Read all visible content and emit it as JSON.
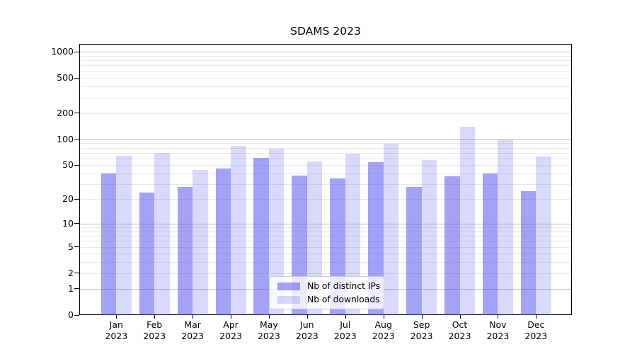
{
  "title": "SDAMS 2023",
  "chart_data": {
    "type": "bar",
    "title": "SDAMS 2023",
    "categories": [
      "Jan",
      "Feb",
      "Mar",
      "Apr",
      "May",
      "Jun",
      "Jul",
      "Aug",
      "Sep",
      "Oct",
      "Nov",
      "Dec"
    ],
    "x_year_label": "2023",
    "series": [
      {
        "name": "Nb of distinct IPs",
        "color": "rgba(80,80,240,0.53)",
        "values": [
          40,
          24,
          28,
          46,
          61,
          38,
          35,
          54,
          28,
          37,
          40,
          25
        ]
      },
      {
        "name": "Nb of downloads",
        "color": "rgba(80,80,240,0.22)",
        "values": [
          65,
          70,
          44,
          84,
          78,
          55,
          68,
          88,
          57,
          140,
          100,
          63
        ]
      }
    ],
    "yscale": "log10(value+1)",
    "yticks": [
      0,
      1,
      2,
      5,
      10,
      20,
      50,
      100,
      200,
      500,
      1000
    ],
    "ytick_labels": [
      "0",
      "1",
      "2",
      "5",
      "10",
      "20",
      "50",
      "100",
      "200",
      "500",
      "1000"
    ],
    "major_grid_values": [
      1,
      10,
      100,
      1000
    ],
    "minor_grid_values": [
      2,
      3,
      4,
      5,
      6,
      7,
      8,
      9,
      20,
      30,
      40,
      50,
      60,
      70,
      80,
      90,
      200,
      300,
      400,
      500,
      600,
      700,
      800,
      900
    ],
    "ylim": [
      0,
      1230
    ],
    "grid": true,
    "legend_position": "lower center"
  },
  "legend": {
    "items": [
      {
        "label": "Nb of distinct IPs"
      },
      {
        "label": "Nb of downloads"
      }
    ]
  },
  "colors": {
    "bar_dark": "rgba(80,80,240,0.53)",
    "bar_light": "rgba(80,80,240,0.22)",
    "major_grid": "#bdbdbd",
    "minor_grid": "#e8e8e8",
    "spine": "#000000",
    "legend_border": "#cccccc",
    "legend_bg": "rgba(255,255,255,0.8)"
  }
}
